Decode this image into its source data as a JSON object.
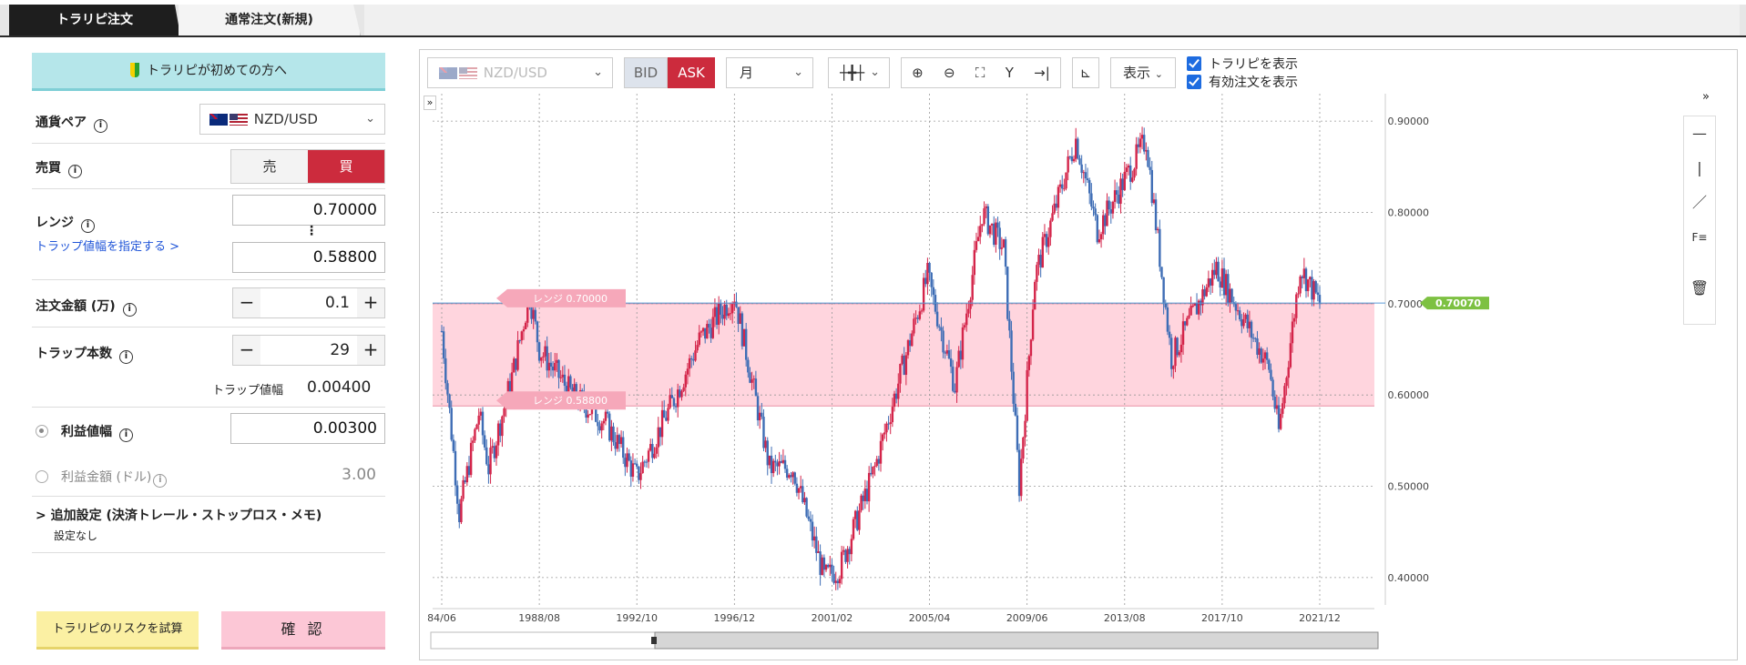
{
  "tabs": [
    {
      "label": "トラリピ注文",
      "active": true
    },
    {
      "label": "通常注文(新規)",
      "active": false
    }
  ],
  "form": {
    "beginner_label": "トラリピが初めての方へ",
    "pair_label": "通貨ペア",
    "pair_value": "NZD/USD",
    "side_label": "売買",
    "sell_label": "売",
    "buy_label": "買",
    "range_label": "レンジ",
    "range_high": "0.70000",
    "range_dots": "⋮",
    "range_low": "0.58800",
    "trap_width_link": "トラップ値幅を指定する >",
    "amount_label": "注文金額 (万)",
    "amount_value": "0.1",
    "trap_count_label": "トラップ本数",
    "trap_count_value": "29",
    "trap_width_label": "トラップ値幅",
    "trap_width_value": "0.00400",
    "profit_width_label": "利益値幅",
    "profit_width_value": "0.00300",
    "profit_amount_label": "利益金額 (ドル)",
    "profit_amount_value": "3.00",
    "extra_settings_label": "> 追加設定 (決済トレール・ストップロス・メモ)",
    "extra_settings_value": "設定なし",
    "risk_button": "トラリピのリスクを試算",
    "confirm_button": "確 認",
    "minus": "−",
    "plus": "+",
    "info": "i"
  },
  "chart_toolbar": {
    "pair": "NZD/USD",
    "bid": "BID",
    "ask": "ASK",
    "period": "月",
    "display": "表示",
    "show_trarip": "トラリピを表示",
    "show_orders": "有効注文を表示",
    "expand": "»",
    "collapse": "»"
  },
  "chart_data": {
    "type": "candlestick",
    "yaxis_ticks": [
      "0.90000",
      "0.80000",
      "0.70000",
      "0.60000",
      "0.50000",
      "0.40000"
    ],
    "ylim": [
      0.37,
      0.93
    ],
    "xaxis_ticks": [
      "84/06",
      "1988/08",
      "1992/10",
      "1996/12",
      "2001/02",
      "2005/04",
      "2009/06",
      "2013/08",
      "2017/10",
      "2021/12"
    ],
    "current_price": "0.70070",
    "range_high_label": "レンジ 0.70000",
    "range_low_label": "レンジ 0.58800",
    "range_high": 0.7,
    "range_low": 0.588,
    "series": [
      {
        "date": "1984/06",
        "close": 0.67
      },
      {
        "date": "1985/03",
        "close": 0.47
      },
      {
        "date": "1986/01",
        "close": 0.58
      },
      {
        "date": "1986/06",
        "close": 0.52
      },
      {
        "date": "1987/06",
        "close": 0.62
      },
      {
        "date": "1988/03",
        "close": 0.71
      },
      {
        "date": "1988/08",
        "close": 0.65
      },
      {
        "date": "1990/01",
        "close": 0.6
      },
      {
        "date": "1991/06",
        "close": 0.57
      },
      {
        "date": "1992/10",
        "close": 0.51
      },
      {
        "date": "1994/06",
        "close": 0.6
      },
      {
        "date": "1995/06",
        "close": 0.66
      },
      {
        "date": "1996/12",
        "close": 0.71
      },
      {
        "date": "1998/06",
        "close": 0.52
      },
      {
        "date": "1999/06",
        "close": 0.52
      },
      {
        "date": "2000/10",
        "close": 0.4
      },
      {
        "date": "2001/06",
        "close": 0.41
      },
      {
        "date": "2002/12",
        "close": 0.52
      },
      {
        "date": "2004/06",
        "close": 0.66
      },
      {
        "date": "2005/03",
        "close": 0.73
      },
      {
        "date": "2006/05",
        "close": 0.61
      },
      {
        "date": "2007/07",
        "close": 0.8
      },
      {
        "date": "2008/06",
        "close": 0.76
      },
      {
        "date": "2009/02",
        "close": 0.5
      },
      {
        "date": "2009/10",
        "close": 0.73
      },
      {
        "date": "2011/07",
        "close": 0.88
      },
      {
        "date": "2012/06",
        "close": 0.78
      },
      {
        "date": "2014/07",
        "close": 0.88
      },
      {
        "date": "2015/08",
        "close": 0.64
      },
      {
        "date": "2017/07",
        "close": 0.74
      },
      {
        "date": "2019/10",
        "close": 0.63
      },
      {
        "date": "2020/03",
        "close": 0.56
      },
      {
        "date": "2021/02",
        "close": 0.74
      },
      {
        "date": "2021/12",
        "close": 0.7
      }
    ]
  },
  "colors": {
    "up": "#d4254a",
    "down": "#3e6db5",
    "range_fill": "#ffd5de",
    "buy": "#cc2b3d",
    "current": "#7dc142"
  }
}
